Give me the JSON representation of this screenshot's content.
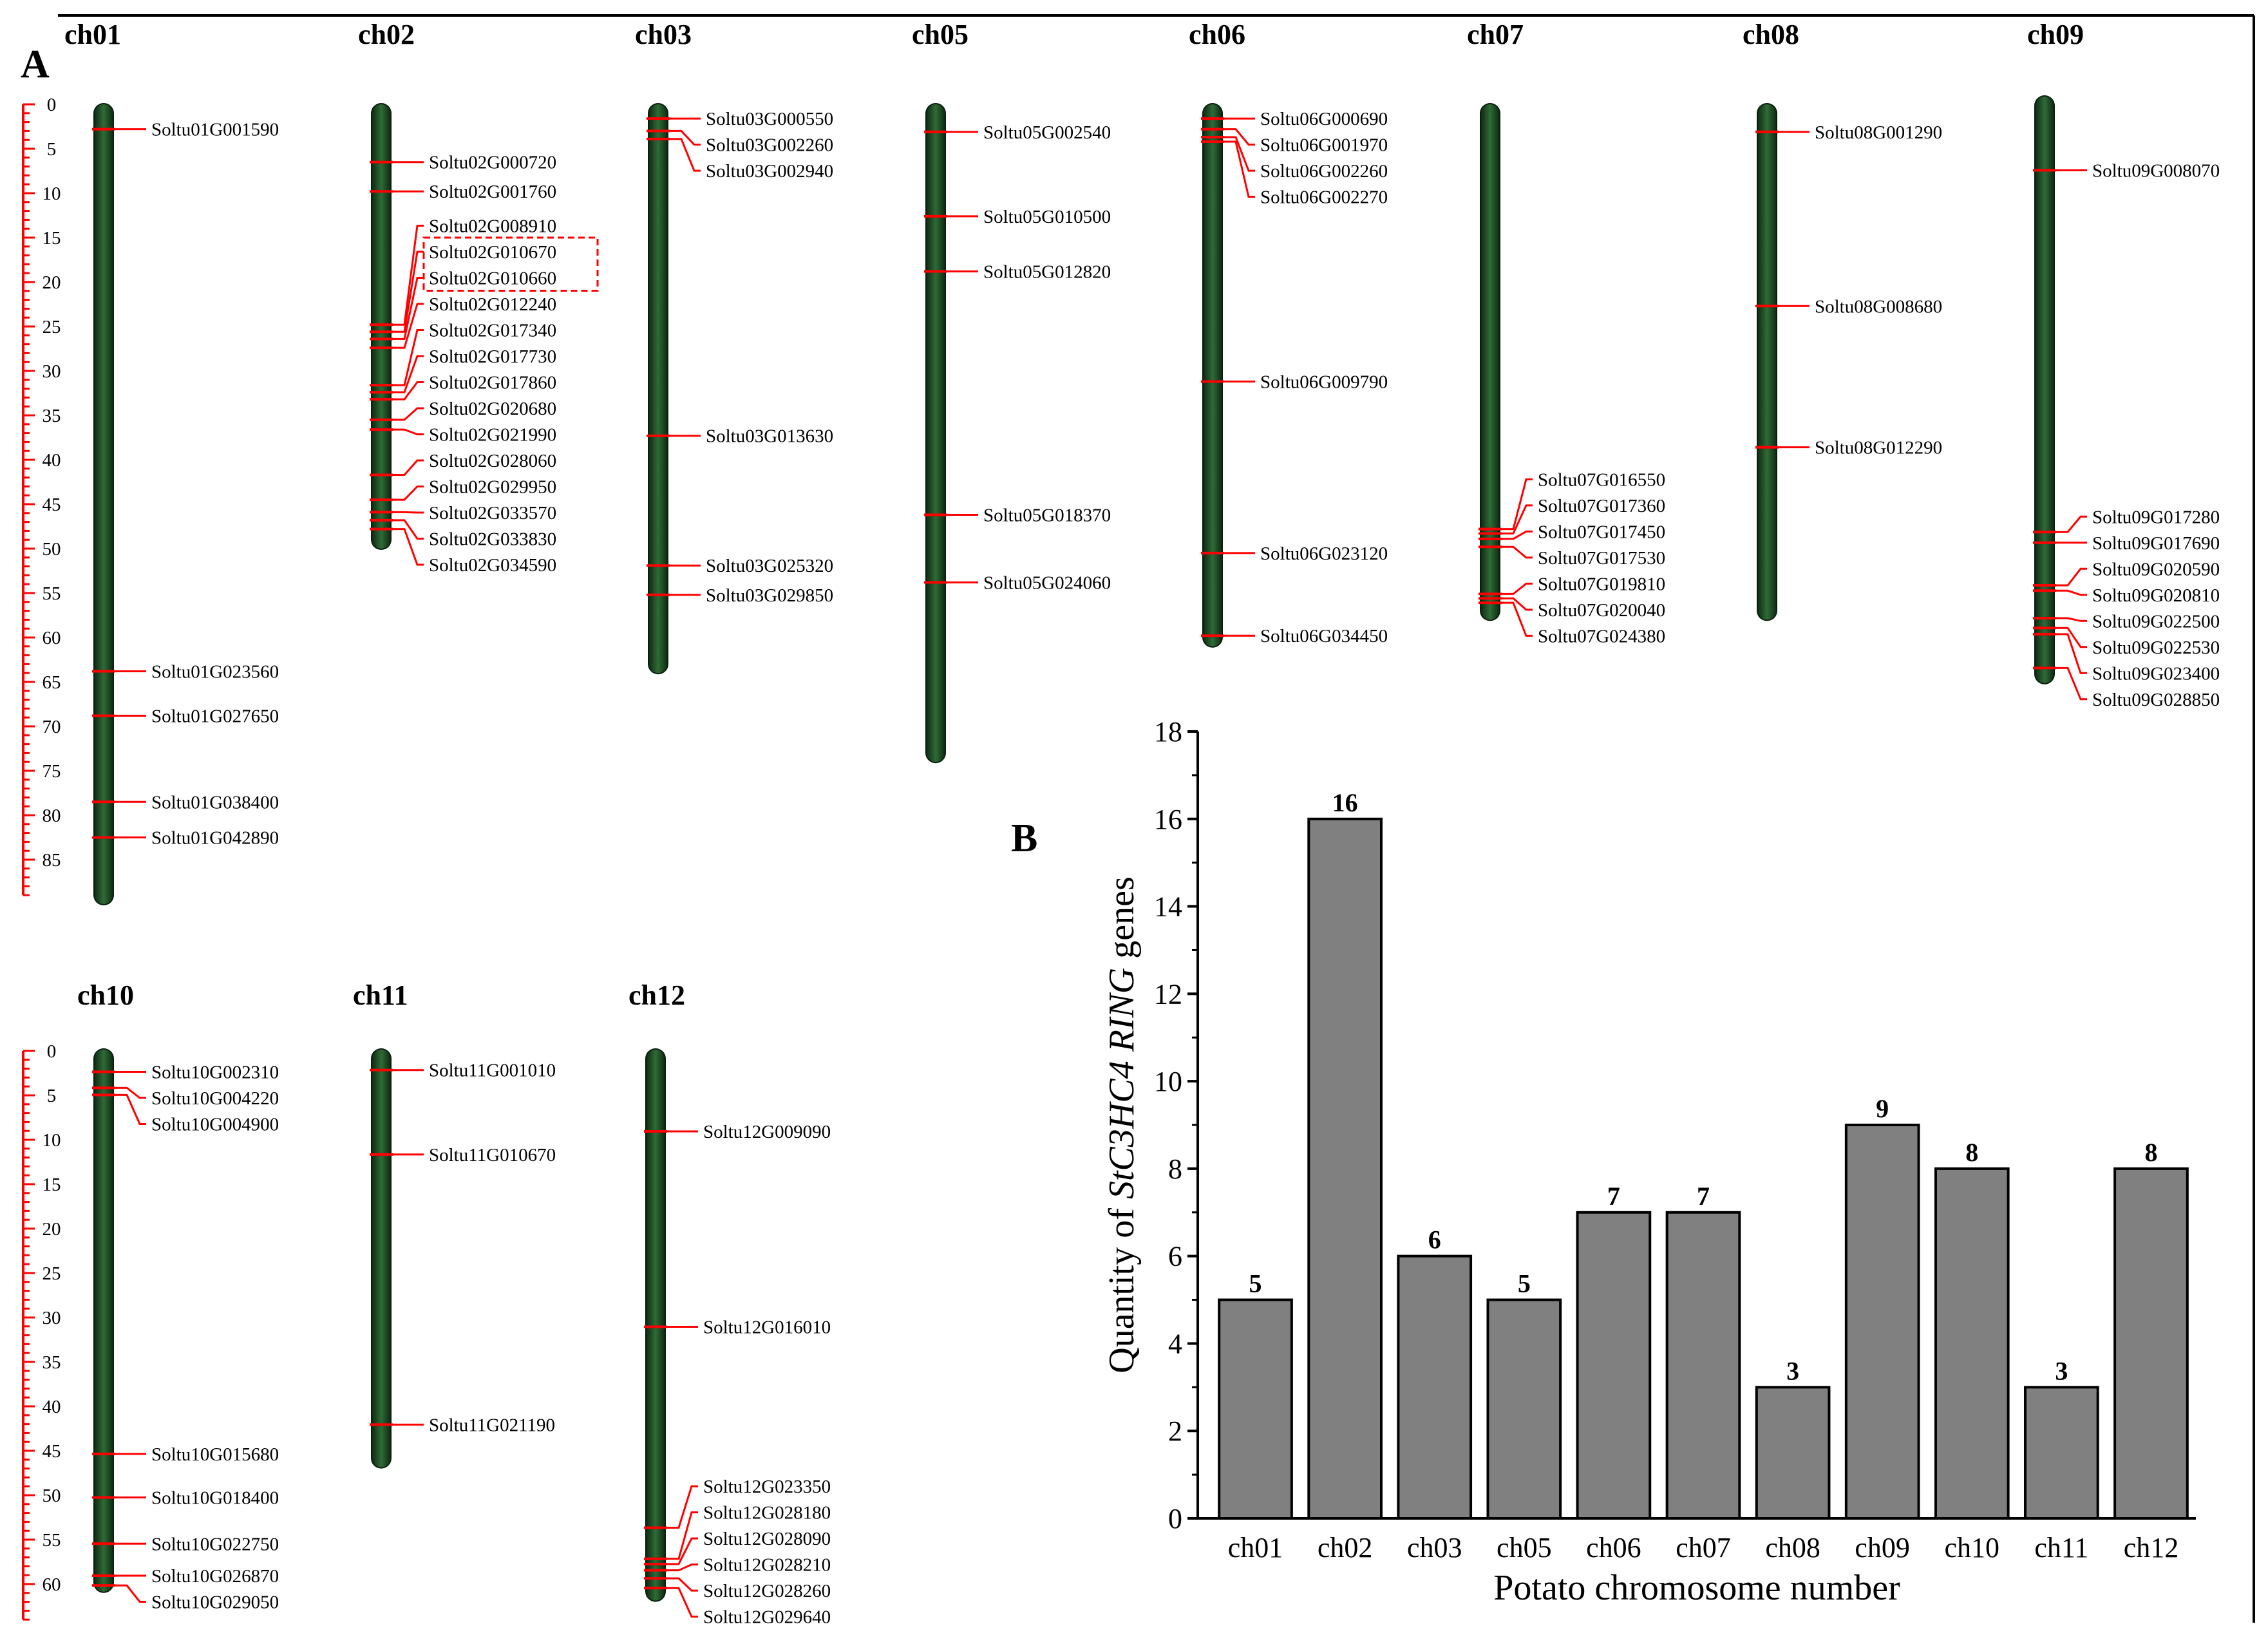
{
  "panel_labels": {
    "a": "A",
    "b": "B"
  },
  "chromosome_map": {
    "scale_ticks_row1": [
      "0",
      "5",
      "10",
      "15",
      "20",
      "25",
      "30",
      "35",
      "40",
      "45",
      "50",
      "55",
      "60",
      "65",
      "70",
      "75",
      "80",
      "85"
    ],
    "scale_ticks_row2": [
      "0",
      "5",
      "10",
      "15",
      "20",
      "25",
      "30",
      "35",
      "40",
      "45",
      "50",
      "55",
      "60"
    ],
    "chromosomes": [
      {
        "name": "ch01",
        "length": 90,
        "genes": [
          {
            "id": "Soltu01G001590",
            "pos": 2.8
          },
          {
            "id": "Soltu01G023560",
            "pos": 63.8
          },
          {
            "id": "Soltu01G027650",
            "pos": 68.8
          },
          {
            "id": "Soltu01G038400",
            "pos": 78.5
          },
          {
            "id": "Soltu01G042890",
            "pos": 82.5
          }
        ]
      },
      {
        "name": "ch02",
        "length": 50,
        "highlight": [
          "Soltu02G010670",
          "Soltu02G010660"
        ],
        "genes": [
          {
            "id": "Soltu02G000720",
            "pos": 6.5
          },
          {
            "id": "Soltu02G001760",
            "pos": 9.8
          },
          {
            "id": "Soltu02G008910",
            "pos": 24.8
          },
          {
            "id": "Soltu02G010670",
            "pos": 25.6
          },
          {
            "id": "Soltu02G010660",
            "pos": 26.4
          },
          {
            "id": "Soltu02G012240",
            "pos": 27.4
          },
          {
            "id": "Soltu02G017340",
            "pos": 31.6
          },
          {
            "id": "Soltu02G017730",
            "pos": 32.4
          },
          {
            "id": "Soltu02G017860",
            "pos": 33.2
          },
          {
            "id": "Soltu02G020680",
            "pos": 35.5
          },
          {
            "id": "Soltu02G021990",
            "pos": 36.6
          },
          {
            "id": "Soltu02G028060",
            "pos": 41.7
          },
          {
            "id": "Soltu02G029950",
            "pos": 44.5
          },
          {
            "id": "Soltu02G033570",
            "pos": 45.9
          },
          {
            "id": "Soltu02G033830",
            "pos": 46.8
          },
          {
            "id": "Soltu02G034590",
            "pos": 47.8
          }
        ]
      },
      {
        "name": "ch03",
        "length": 64,
        "genes": [
          {
            "id": "Soltu03G000550",
            "pos": 1.6
          },
          {
            "id": "Soltu03G002260",
            "pos": 3.0
          },
          {
            "id": "Soltu03G002940",
            "pos": 3.9
          },
          {
            "id": "Soltu03G013630",
            "pos": 37.3
          },
          {
            "id": "Soltu03G025320",
            "pos": 51.9
          },
          {
            "id": "Soltu03G029850",
            "pos": 55.2
          }
        ]
      },
      {
        "name": "ch05",
        "length": 74,
        "genes": [
          {
            "id": "Soltu05G002540",
            "pos": 3.1
          },
          {
            "id": "Soltu05G010500",
            "pos": 12.6
          },
          {
            "id": "Soltu05G012820",
            "pos": 18.8
          },
          {
            "id": "Soltu05G018370",
            "pos": 46.2
          },
          {
            "id": "Soltu05G024060",
            "pos": 53.8
          }
        ]
      },
      {
        "name": "ch06",
        "length": 61,
        "genes": [
          {
            "id": "Soltu06G000690",
            "pos": 1.6
          },
          {
            "id": "Soltu06G001970",
            "pos": 2.8
          },
          {
            "id": "Soltu06G002260",
            "pos": 3.7
          },
          {
            "id": "Soltu06G002270",
            "pos": 4.2
          },
          {
            "id": "Soltu06G009790",
            "pos": 31.2
          },
          {
            "id": "Soltu06G023120",
            "pos": 50.5
          },
          {
            "id": "Soltu06G034450",
            "pos": 59.8
          }
        ]
      },
      {
        "name": "ch07",
        "length": 58,
        "genes": [
          {
            "id": "Soltu07G016550",
            "pos": 47.8
          },
          {
            "id": "Soltu07G017360",
            "pos": 48.3
          },
          {
            "id": "Soltu07G017450",
            "pos": 48.9
          },
          {
            "id": "Soltu07G017530",
            "pos": 49.8
          },
          {
            "id": "Soltu07G019810",
            "pos": 55.1
          },
          {
            "id": "Soltu07G020040",
            "pos": 55.6
          },
          {
            "id": "Soltu07G024380",
            "pos": 56.1
          }
        ]
      },
      {
        "name": "ch08",
        "length": 58,
        "genes": [
          {
            "id": "Soltu08G001290",
            "pos": 3.1
          },
          {
            "id": "Soltu08G008680",
            "pos": 22.7
          },
          {
            "id": "Soltu08G012290",
            "pos": 38.6
          }
        ]
      },
      {
        "name": "ch09",
        "length": 66,
        "genes": [
          {
            "id": "Soltu09G008070",
            "pos": 8.3
          },
          {
            "id": "Soltu09G017280",
            "pos": 49.0
          },
          {
            "id": "Soltu09G017690",
            "pos": 50.2
          },
          {
            "id": "Soltu09G020590",
            "pos": 55.0
          },
          {
            "id": "Soltu09G020810",
            "pos": 55.6
          },
          {
            "id": "Soltu09G022500",
            "pos": 58.7
          },
          {
            "id": "Soltu09G022530",
            "pos": 59.8
          },
          {
            "id": "Soltu09G023400",
            "pos": 60.5
          },
          {
            "id": "Soltu09G028850",
            "pos": 64.3
          }
        ]
      },
      {
        "name": "ch10",
        "length": 61,
        "genes": [
          {
            "id": "Soltu10G002310",
            "pos": 2.5
          },
          {
            "id": "Soltu10G004220",
            "pos": 4.3
          },
          {
            "id": "Soltu10G004900",
            "pos": 5.1
          },
          {
            "id": "Soltu10G015680",
            "pos": 45.5
          },
          {
            "id": "Soltu10G018400",
            "pos": 50.4
          },
          {
            "id": "Soltu10G022750",
            "pos": 55.6
          },
          {
            "id": "Soltu10G026870",
            "pos": 59.2
          },
          {
            "id": "Soltu10G029050",
            "pos": 60.3
          }
        ]
      },
      {
        "name": "ch11",
        "length": 47,
        "genes": [
          {
            "id": "Soltu11G001010",
            "pos": 2.3
          },
          {
            "id": "Soltu11G010670",
            "pos": 11.8
          },
          {
            "id": "Soltu11G021190",
            "pos": 42.2
          }
        ]
      },
      {
        "name": "ch12",
        "length": 62,
        "genes": [
          {
            "id": "Soltu12G009090",
            "pos": 9.2
          },
          {
            "id": "Soltu12G016010",
            "pos": 31.2
          },
          {
            "id": "Soltu12G023350",
            "pos": 53.8
          },
          {
            "id": "Soltu12G028180",
            "pos": 57.3
          },
          {
            "id": "Soltu12G028090",
            "pos": 57.9
          },
          {
            "id": "Soltu12G028210",
            "pos": 58.6
          },
          {
            "id": "Soltu12G028260",
            "pos": 59.5
          },
          {
            "id": "Soltu12G029640",
            "pos": 60.6
          }
        ]
      }
    ]
  },
  "chart_data": {
    "type": "bar",
    "categories": [
      "ch01",
      "ch02",
      "ch03",
      "ch05",
      "ch06",
      "ch07",
      "ch08",
      "ch09",
      "ch10",
      "ch11",
      "ch12"
    ],
    "values": [
      5,
      16,
      6,
      5,
      7,
      7,
      3,
      9,
      8,
      3,
      8
    ],
    "ylim": [
      0,
      18
    ],
    "yticks": [
      "0",
      "2",
      "4",
      "6",
      "8",
      "10",
      "12",
      "14",
      "16",
      "18"
    ],
    "ylabel_parts": [
      "Quantity of ",
      "StC3HC4 RING",
      " genes"
    ],
    "xlabel": "Potato chromosome number",
    "bar_color": "#808080",
    "data_labels": true
  },
  "colors": {
    "chromosome": "#1e4d26",
    "chromosome_highlight": "#5aa060",
    "marker": "#ff0000",
    "bar": "#808080"
  }
}
